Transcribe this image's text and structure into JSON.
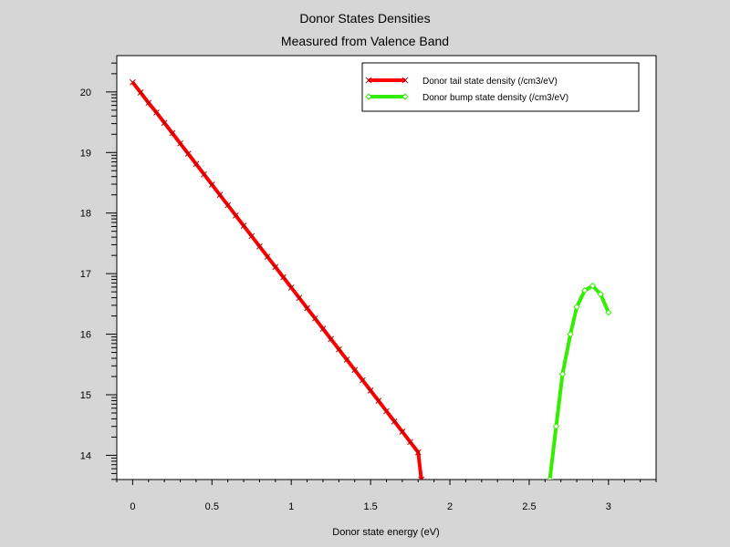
{
  "chart_data": {
    "type": "line",
    "title": "Donor States Densities",
    "subtitle": "Measured from Valence Band",
    "xlabel": "Donor state energy (eV)",
    "ylabel": "",
    "xlim": [
      -0.1,
      3.3
    ],
    "ylim": [
      13.6,
      20.6
    ],
    "xticks": [
      0,
      0.5,
      1,
      1.5,
      2,
      2.5,
      3
    ],
    "xtick_labels": [
      "0",
      "0.5",
      "1",
      "1.5",
      "2",
      "2.5",
      "3"
    ],
    "yticks": [
      14,
      15,
      16,
      17,
      18,
      19,
      20
    ],
    "ytick_labels": [
      "14",
      "15",
      "16",
      "17",
      "18",
      "19",
      "20"
    ],
    "grid": false,
    "legend_position": "top-right",
    "series": [
      {
        "name": "Donor tail state density (/cm3/eV)",
        "color": "#ff0000",
        "marker": "x",
        "x": [
          0,
          0.05,
          0.1,
          0.15,
          0.2,
          0.25,
          0.3,
          0.35,
          0.4,
          0.45,
          0.5,
          0.55,
          0.6,
          0.65,
          0.7,
          0.75,
          0.8,
          0.85,
          0.9,
          0.95,
          1.0,
          1.05,
          1.1,
          1.15,
          1.2,
          1.25,
          1.3,
          1.35,
          1.4,
          1.45,
          1.5,
          1.55,
          1.6,
          1.65,
          1.7,
          1.75,
          1.8,
          1.82
        ],
        "y": [
          20.16,
          19.99,
          19.82,
          19.66,
          19.49,
          19.32,
          19.15,
          18.98,
          18.81,
          18.64,
          18.47,
          18.3,
          18.13,
          17.96,
          17.79,
          17.62,
          17.45,
          17.28,
          17.11,
          16.94,
          16.77,
          16.6,
          16.43,
          16.26,
          16.09,
          15.92,
          15.75,
          15.58,
          15.41,
          15.24,
          15.07,
          14.9,
          14.73,
          14.56,
          14.39,
          14.22,
          14.05,
          13.6
        ]
      },
      {
        "name": "Donor bump state density (/cm3/eV)",
        "color": "#33ee00",
        "marker": "diamond",
        "x": [
          2.63,
          2.67,
          2.71,
          2.76,
          2.8,
          2.85,
          2.9,
          2.95,
          3.0
        ],
        "y": [
          13.6,
          14.48,
          15.34,
          16.0,
          16.45,
          16.72,
          16.8,
          16.66,
          16.36
        ]
      }
    ]
  }
}
